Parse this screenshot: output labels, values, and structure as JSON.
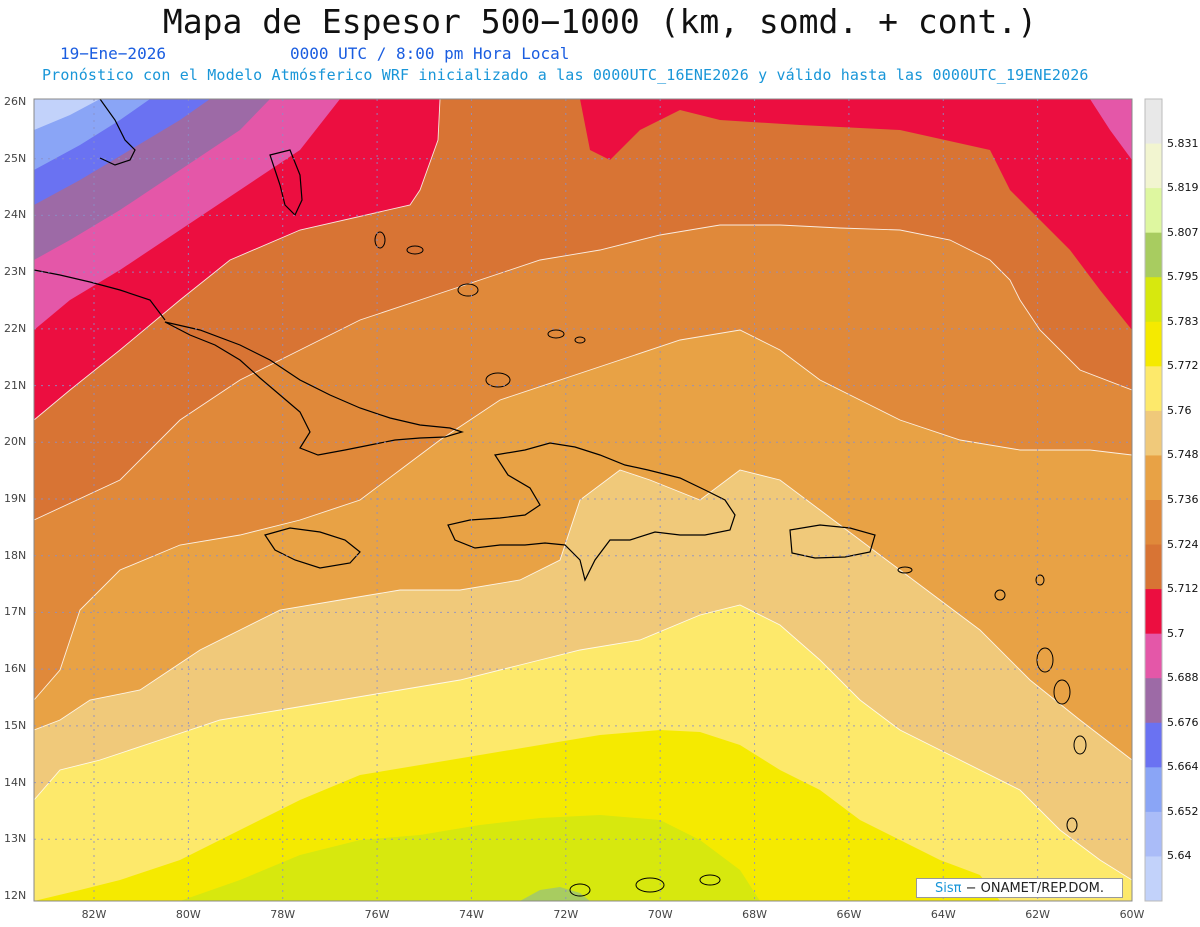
{
  "title": "Mapa de Espesor 500−1000 (km, somd. + cont.)",
  "date": "19−Ene−2026",
  "time": "0000 UTC / 8:00 pm Hora Local",
  "description": "Pronóstico con el Modelo Atmósferico WRF inicializado a las 0000UTC_16ENE2026 y válido hasta las  0000UTC_19ENE2026",
  "credit": {
    "sis": "Sisπ",
    "rest": "− ONAMET/REP.DOM."
  },
  "latitudes": [
    "26N",
    "25N",
    "24N",
    "23N",
    "22N",
    "21N",
    "20N",
    "19N",
    "18N",
    "17N",
    "16N",
    "15N",
    "14N",
    "13N",
    "12N"
  ],
  "longitudes": [
    "82W",
    "80W",
    "78W",
    "76W",
    "74W",
    "72W",
    "70W",
    "68W",
    "66W",
    "64W",
    "62W",
    "60W"
  ],
  "colorbar": {
    "labels": [
      "5.831",
      "5.819",
      "5.807",
      "5.795",
      "5.783",
      "5.772",
      "5.76",
      "5.748",
      "5.736",
      "5.724",
      "5.712",
      "5.7",
      "5.688",
      "5.676",
      "5.664",
      "5.652",
      "5.64"
    ],
    "colors": [
      "#e8e8e8",
      "#f2f5d0",
      "#def7a0",
      "#a8cc60",
      "#d7e80e",
      "#f5ea00",
      "#fde96b",
      "#f0c97a",
      "#e8a245",
      "#e0893a",
      "#d87434",
      "#ec0e40",
      "#e457a8",
      "#9d6aa6",
      "#6a72f2",
      "#8aa5f6",
      "#aabcf8",
      "#c2d2fa"
    ]
  },
  "thickness_bands": [
    {
      "label": "5.64 – 5.652",
      "color": "#c2d2fa"
    },
    {
      "label": "5.652 – 5.664",
      "color": "#8aa5f6"
    },
    {
      "label": "5.664 – 5.676",
      "color": "#6a72f2"
    },
    {
      "label": "5.676 – 5.688",
      "color": "#9d6aa6"
    },
    {
      "label": "5.688 – 5.7",
      "color": "#e457a8"
    },
    {
      "label": "5.7 – 5.712",
      "color": "#ec0e40"
    },
    {
      "label": "5.712 – 5.724",
      "color": "#d87434"
    },
    {
      "label": "5.724 – 5.736",
      "color": "#e0893a"
    },
    {
      "label": "5.736 – 5.748",
      "color": "#e8a245"
    },
    {
      "label": "5.748 – 5.76",
      "color": "#f0c97a"
    },
    {
      "label": "5.76 – 5.772",
      "color": "#fde96b"
    },
    {
      "label": "5.772 – 5.783",
      "color": "#f5ea00"
    },
    {
      "label": "5.783 – 5.795",
      "color": "#d7e80e"
    },
    {
      "label": "5.795 – 5.807",
      "color": "#a8cc60"
    }
  ]
}
